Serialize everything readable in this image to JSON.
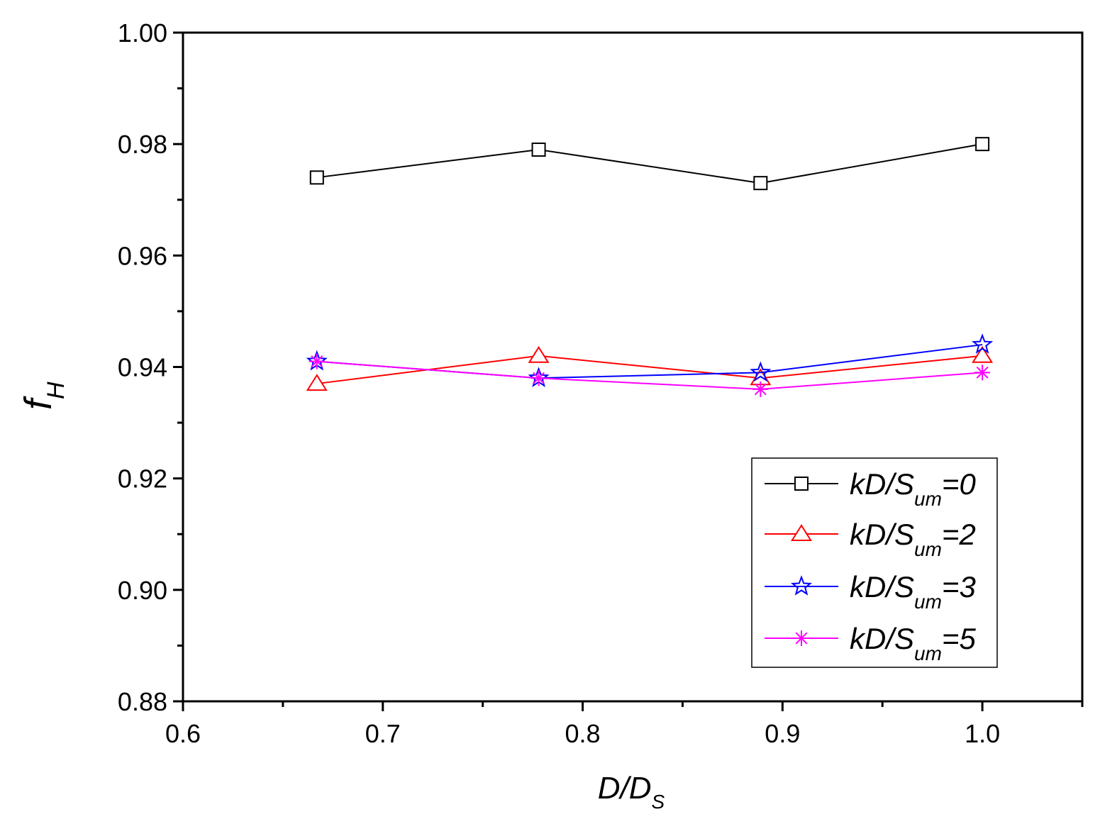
{
  "chart_data": {
    "type": "line",
    "title": "",
    "xlabel": {
      "main": "D/D",
      "sub": "S"
    },
    "ylabel": {
      "main": "f",
      "sub": "H"
    },
    "xlim": [
      0.6,
      1.05
    ],
    "ylim": [
      0.88,
      1.0
    ],
    "x_ticks": [
      0.6,
      0.7,
      0.8,
      0.9,
      1.0
    ],
    "x_tick_labels": [
      "0.6",
      "0.7",
      "0.8",
      "0.9",
      "1.0"
    ],
    "x_minor_ticks": [
      0.65,
      0.75,
      0.85,
      0.95,
      1.05
    ],
    "y_ticks": [
      0.88,
      0.9,
      0.92,
      0.94,
      0.96,
      0.98,
      1.0
    ],
    "y_tick_labels": [
      "0.88",
      "0.90",
      "0.92",
      "0.94",
      "0.96",
      "0.98",
      "1.00"
    ],
    "y_minor_ticks": [
      0.89,
      0.91,
      0.93,
      0.95,
      0.97,
      0.99
    ],
    "x": [
      0.667,
      0.778,
      0.889,
      1.0
    ],
    "series": [
      {
        "name": "kD/S_um=0",
        "label_main": "kD/S",
        "label_sub": "um",
        "label_suffix": "=0",
        "marker": "square",
        "color": "#000000",
        "values": [
          0.974,
          0.979,
          0.973,
          0.98
        ]
      },
      {
        "name": "kD/S_um=2",
        "label_main": "kD/S",
        "label_sub": "um",
        "label_suffix": "=2",
        "marker": "triangle",
        "color": "#ff0000",
        "values": [
          0.937,
          0.942,
          0.938,
          0.942
        ]
      },
      {
        "name": "kD/S_um=3",
        "label_main": "kD/S",
        "label_sub": "um",
        "label_suffix": "=3",
        "marker": "star",
        "color": "#0000ff",
        "values": [
          0.941,
          0.938,
          0.939,
          0.944
        ]
      },
      {
        "name": "kD/S_um=5",
        "label_main": "kD/S",
        "label_sub": "um",
        "label_suffix": "=5",
        "marker": "asterisk",
        "color": "#ff00ff",
        "values": [
          0.941,
          0.938,
          0.936,
          0.939
        ]
      }
    ],
    "grid": false,
    "legend_position": "bottom-right"
  }
}
